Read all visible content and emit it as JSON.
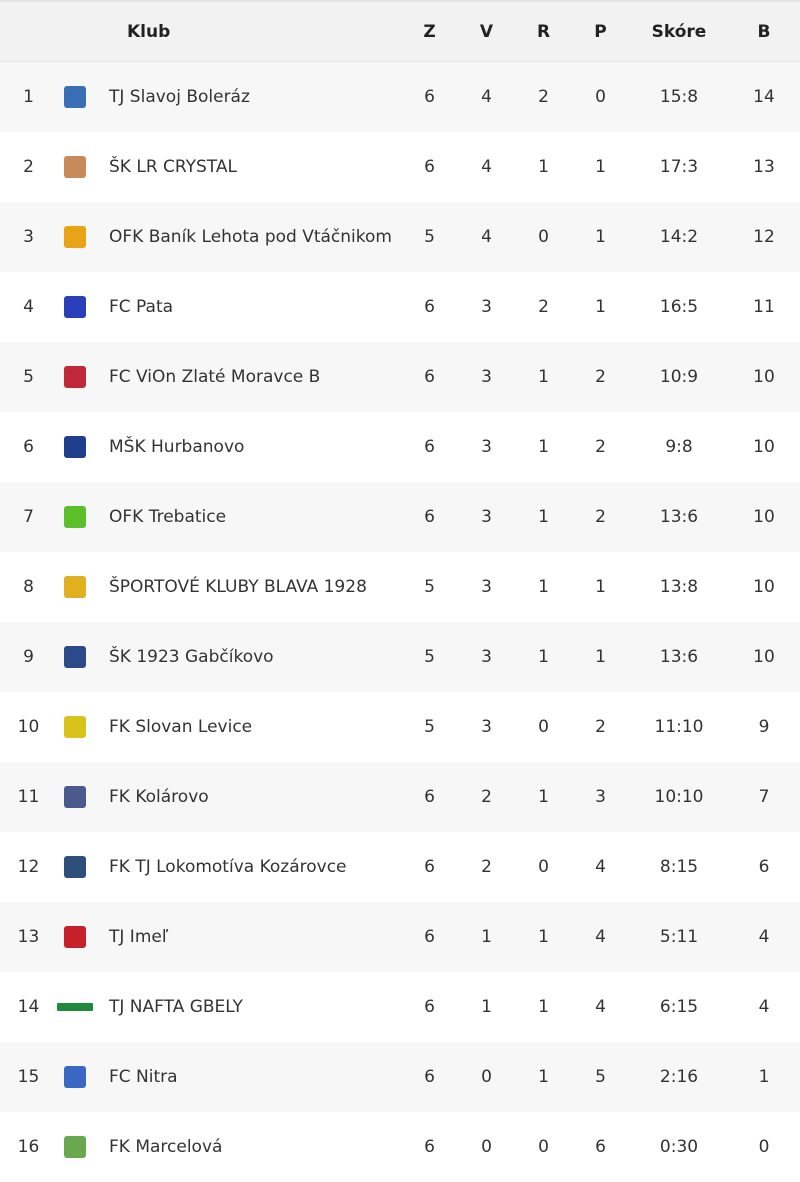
{
  "header": {
    "club": "Klub",
    "played": "Z",
    "wins": "V",
    "draws": "R",
    "losses": "P",
    "score": "Skóre",
    "points": "B"
  },
  "rows": [
    {
      "pos": "1",
      "club": "TJ Slavoj Boleráz",
      "z": "6",
      "v": "4",
      "r": "2",
      "p": "0",
      "score": "15:8",
      "b": "14",
      "logo_icon": "slavoj-boleraz-crest-icon",
      "logo_color": "#3a6fb5"
    },
    {
      "pos": "2",
      "club": "ŠK LR CRYSTAL",
      "z": "6",
      "v": "4",
      "r": "1",
      "p": "1",
      "score": "17:3",
      "b": "13",
      "logo_icon": "lr-crystal-crest-icon",
      "logo_color": "#c98a5a"
    },
    {
      "pos": "3",
      "club": "OFK Baník Lehota pod Vtáčnikom",
      "z": "5",
      "v": "4",
      "r": "0",
      "p": "1",
      "score": "14:2",
      "b": "12",
      "logo_icon": "banik-lehota-crest-icon",
      "logo_color": "#e8a317"
    },
    {
      "pos": "4",
      "club": "FC Pata",
      "z": "6",
      "v": "3",
      "r": "2",
      "p": "1",
      "score": "16:5",
      "b": "11",
      "logo_icon": "fc-pata-crest-icon",
      "logo_color": "#2b3fb8"
    },
    {
      "pos": "5",
      "club": "FC ViOn Zlaté Moravce B",
      "z": "6",
      "v": "3",
      "r": "1",
      "p": "2",
      "score": "10:9",
      "b": "10",
      "logo_icon": "vion-crest-icon",
      "logo_color": "#c0283a"
    },
    {
      "pos": "6",
      "club": "MŠK Hurbanovo",
      "z": "6",
      "v": "3",
      "r": "1",
      "p": "2",
      "score": "9:8",
      "b": "10",
      "logo_icon": "hurbanovo-crest-icon",
      "logo_color": "#1f3e8c"
    },
    {
      "pos": "7",
      "club": "OFK Trebatice",
      "z": "6",
      "v": "3",
      "r": "1",
      "p": "2",
      "score": "13:6",
      "b": "10",
      "logo_icon": "trebatice-crest-icon",
      "logo_color": "#5bbf2a"
    },
    {
      "pos": "8",
      "club": "ŠPORTOVÉ KLUBY BLAVA 1928",
      "z": "5",
      "v": "3",
      "r": "1",
      "p": "1",
      "score": "13:8",
      "b": "10",
      "logo_icon": "blava-crest-icon",
      "logo_color": "#e0b020"
    },
    {
      "pos": "9",
      "club": "ŠK 1923 Gabčíkovo",
      "z": "5",
      "v": "3",
      "r": "1",
      "p": "1",
      "score": "13:6",
      "b": "10",
      "logo_icon": "gabcikovo-crest-icon",
      "logo_color": "#2c4a8a"
    },
    {
      "pos": "10",
      "club": "FK Slovan Levice",
      "z": "5",
      "v": "3",
      "r": "0",
      "p": "2",
      "score": "11:10",
      "b": "9",
      "logo_icon": "slovan-levice-crest-icon",
      "logo_color": "#d9c21a"
    },
    {
      "pos": "11",
      "club": "FK Kolárovo",
      "z": "6",
      "v": "2",
      "r": "1",
      "p": "3",
      "score": "10:10",
      "b": "7",
      "logo_icon": "kolarovo-crest-icon",
      "logo_color": "#4a5a8c"
    },
    {
      "pos": "12",
      "club": "FK TJ Lokomotíva Kozárovce",
      "z": "6",
      "v": "2",
      "r": "0",
      "p": "4",
      "score": "8:15",
      "b": "6",
      "logo_icon": "kozarovce-crest-icon",
      "logo_color": "#2d4f7a"
    },
    {
      "pos": "13",
      "club": "TJ Imeľ",
      "z": "6",
      "v": "1",
      "r": "1",
      "p": "4",
      "score": "5:11",
      "b": "4",
      "logo_icon": "imel-crest-icon",
      "logo_color": "#c8202a"
    },
    {
      "pos": "14",
      "club": "TJ NAFTA GBELY",
      "z": "6",
      "v": "1",
      "r": "1",
      "p": "4",
      "score": "6:15",
      "b": "4",
      "logo_icon": "nafta-gbely-crest-icon",
      "logo_color": "#1f8a3a"
    },
    {
      "pos": "15",
      "club": "FC Nitra",
      "z": "6",
      "v": "0",
      "r": "1",
      "p": "5",
      "score": "2:16",
      "b": "1",
      "logo_icon": "fc-nitra-crest-icon",
      "logo_color": "#3a66c4"
    },
    {
      "pos": "16",
      "club": "FK Marcelová",
      "z": "6",
      "v": "0",
      "r": "0",
      "p": "6",
      "score": "0:30",
      "b": "0",
      "logo_icon": "marcelova-crest-icon",
      "logo_color": "#6aa84f"
    }
  ]
}
